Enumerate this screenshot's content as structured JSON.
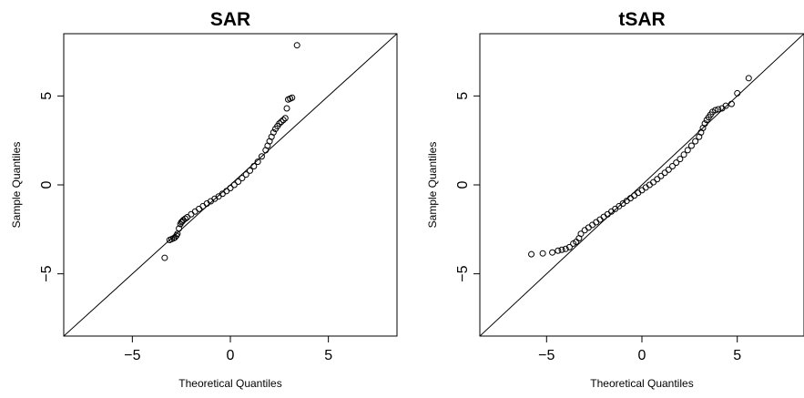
{
  "chart_data": [
    {
      "type": "scatter",
      "title": "SAR",
      "xlabel": "Theoretical Quantiles",
      "ylabel": "Sample Quantiles",
      "xlim": [
        -8.5,
        8.5
      ],
      "ylim": [
        -8.5,
        8.5
      ],
      "x_ticks": [
        -5,
        0,
        5
      ],
      "y_ticks": [
        -5,
        0,
        5
      ],
      "x_tick_labels": [
        "−5",
        "0",
        "5"
      ],
      "y_tick_labels": [
        "−5",
        "0",
        "5"
      ],
      "reference_line": "y = x",
      "grid": false,
      "legend": "none",
      "marker": "open-circle",
      "series": [
        {
          "x": [
            -3.35,
            -3.1,
            -3.0,
            -2.9,
            -2.82,
            -2.75,
            -2.7,
            -2.62,
            -2.55,
            -2.5,
            -2.45,
            -2.4,
            -2.3,
            -2.2,
            -2.0,
            -1.8,
            -1.6,
            -1.4,
            -1.2,
            -1.0,
            -0.8,
            -0.6,
            -0.4,
            -0.2,
            0.0,
            0.2,
            0.4,
            0.6,
            0.8,
            1.0,
            1.2,
            1.4,
            1.6,
            1.8,
            1.9,
            2.0,
            2.1,
            2.2,
            2.3,
            2.4,
            2.5,
            2.6,
            2.7,
            2.8,
            2.88,
            2.95,
            3.05,
            3.15,
            3.4
          ],
          "y": [
            -4.1,
            -3.1,
            -3.05,
            -3.0,
            -2.95,
            -2.85,
            -2.75,
            -2.45,
            -2.2,
            -2.1,
            -2.05,
            -1.98,
            -1.9,
            -1.82,
            -1.65,
            -1.5,
            -1.35,
            -1.2,
            -1.05,
            -0.92,
            -0.78,
            -0.65,
            -0.5,
            -0.35,
            -0.18,
            0.0,
            0.18,
            0.38,
            0.58,
            0.8,
            1.05,
            1.3,
            1.6,
            1.95,
            2.2,
            2.45,
            2.7,
            2.95,
            3.15,
            3.3,
            3.45,
            3.55,
            3.65,
            3.75,
            4.3,
            4.8,
            4.85,
            4.9,
            7.85
          ]
        }
      ]
    },
    {
      "type": "scatter",
      "title": "tSAR",
      "xlabel": "Theoretical Quantiles",
      "ylabel": "Sample Quantiles",
      "xlim": [
        -8.5,
        8.5
      ],
      "ylim": [
        -8.5,
        8.5
      ],
      "x_ticks": [
        -5,
        0,
        5
      ],
      "y_ticks": [
        -5,
        0,
        5
      ],
      "x_tick_labels": [
        "−5",
        "0",
        "5"
      ],
      "y_tick_labels": [
        "−5",
        "0",
        "5"
      ],
      "reference_line": "y = x",
      "grid": false,
      "legend": "none",
      "marker": "open-circle",
      "series": [
        {
          "x": [
            -5.8,
            -5.2,
            -4.7,
            -4.4,
            -4.2,
            -4.0,
            -3.8,
            -3.6,
            -3.45,
            -3.3,
            -3.2,
            -3.0,
            -2.8,
            -2.6,
            -2.4,
            -2.2,
            -2.0,
            -1.8,
            -1.6,
            -1.4,
            -1.2,
            -1.0,
            -0.8,
            -0.6,
            -0.4,
            -0.2,
            0.0,
            0.2,
            0.4,
            0.6,
            0.8,
            1.0,
            1.2,
            1.4,
            1.6,
            1.8,
            2.0,
            2.2,
            2.4,
            2.6,
            2.8,
            3.0,
            3.1,
            3.2,
            3.3,
            3.4,
            3.5,
            3.6,
            3.7,
            3.85,
            4.0,
            4.2,
            4.4,
            4.7,
            5.0,
            5.6
          ],
          "y": [
            -3.9,
            -3.85,
            -3.8,
            -3.7,
            -3.65,
            -3.6,
            -3.5,
            -3.3,
            -3.2,
            -3.0,
            -2.75,
            -2.55,
            -2.4,
            -2.25,
            -2.1,
            -1.95,
            -1.8,
            -1.65,
            -1.5,
            -1.35,
            -1.2,
            -1.05,
            -0.9,
            -0.75,
            -0.6,
            -0.45,
            -0.3,
            -0.15,
            0.0,
            0.15,
            0.32,
            0.5,
            0.68,
            0.85,
            1.05,
            1.25,
            1.45,
            1.7,
            1.95,
            2.2,
            2.45,
            2.7,
            2.95,
            3.2,
            3.45,
            3.65,
            3.8,
            3.95,
            4.1,
            4.2,
            4.25,
            4.3,
            4.45,
            4.55,
            5.15,
            6.0
          ]
        }
      ]
    }
  ]
}
